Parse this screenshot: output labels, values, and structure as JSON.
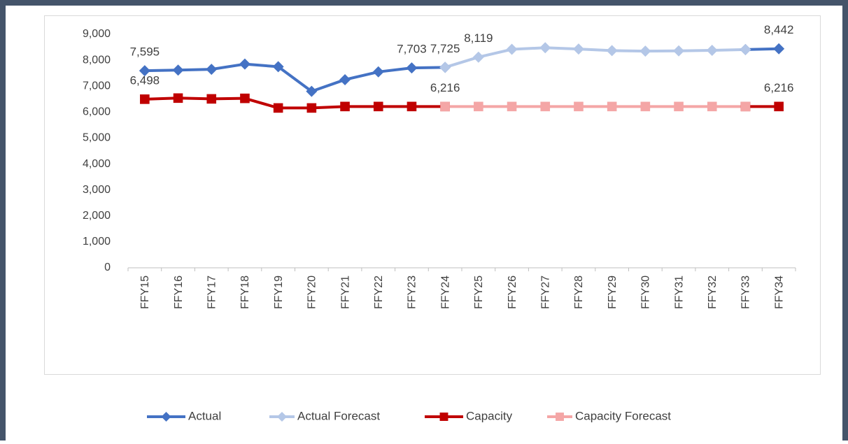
{
  "chart_data": {
    "type": "line",
    "categories": [
      "FFY15",
      "FFY16",
      "FFY17",
      "FFY18",
      "FFY19",
      "FFY20",
      "FFY21",
      "FFY22",
      "FFY23",
      "FFY24",
      "FFY25",
      "FFY26",
      "FFY27",
      "FFY28",
      "FFY29",
      "FFY30",
      "FFY31",
      "FFY32",
      "FFY33",
      "FFY34"
    ],
    "series": [
      {
        "name": "Actual",
        "color": "#4472c4",
        "marker": "diamond",
        "values": [
          7595,
          7620,
          7650,
          7850,
          7750,
          6800,
          7250,
          7550,
          7703,
          7725,
          null,
          null,
          null,
          null,
          null,
          null,
          null,
          null,
          8410,
          8442
        ],
        "value_labels": [
          "7,595",
          null,
          null,
          null,
          null,
          null,
          null,
          null,
          "7,703",
          "7,725",
          null,
          null,
          null,
          null,
          null,
          null,
          null,
          null,
          null,
          "8,442"
        ]
      },
      {
        "name": "Actual Forecast",
        "color": "#b4c7e7",
        "marker": "diamond",
        "values": [
          null,
          null,
          null,
          null,
          null,
          null,
          null,
          null,
          null,
          7725,
          8119,
          8420,
          8480,
          8430,
          8370,
          8350,
          8360,
          8380,
          8410,
          null
        ],
        "value_labels": [
          null,
          null,
          null,
          null,
          null,
          null,
          null,
          null,
          null,
          null,
          "8,119",
          null,
          null,
          null,
          null,
          null,
          null,
          null,
          null,
          null
        ]
      },
      {
        "name": "Capacity",
        "color": "#c00000",
        "marker": "square",
        "values": [
          6498,
          6540,
          6510,
          6530,
          6160,
          6160,
          6216,
          6216,
          6216,
          6216,
          null,
          null,
          null,
          null,
          null,
          null,
          null,
          null,
          6216,
          6216
        ],
        "value_labels": [
          "6,498",
          null,
          null,
          null,
          null,
          null,
          null,
          null,
          null,
          "6,216",
          null,
          null,
          null,
          null,
          null,
          null,
          null,
          null,
          null,
          "6,216"
        ]
      },
      {
        "name": "Capacity Forecast",
        "color": "#f4a6a6",
        "marker": "square",
        "values": [
          null,
          null,
          null,
          null,
          null,
          null,
          null,
          null,
          null,
          6216,
          6216,
          6216,
          6216,
          6216,
          6216,
          6216,
          6216,
          6216,
          6216,
          null
        ]
      }
    ],
    "ylim": [
      0,
      9000
    ],
    "yticks": [
      0,
      {
        "value": 1000,
        "label": "1,000"
      },
      {
        "value": 2000,
        "label": "2,000"
      },
      {
        "value": 3000,
        "label": "3,000"
      },
      {
        "value": 4000,
        "label": "4,000"
      },
      {
        "value": 5000,
        "label": "5,000"
      },
      {
        "value": 6000,
        "label": "6,000"
      },
      {
        "value": 7000,
        "label": "7,000"
      },
      {
        "value": 8000,
        "label": "8,000"
      },
      {
        "value": 9000,
        "label": "9,000"
      }
    ],
    "grid": false,
    "legend": "bottom"
  }
}
